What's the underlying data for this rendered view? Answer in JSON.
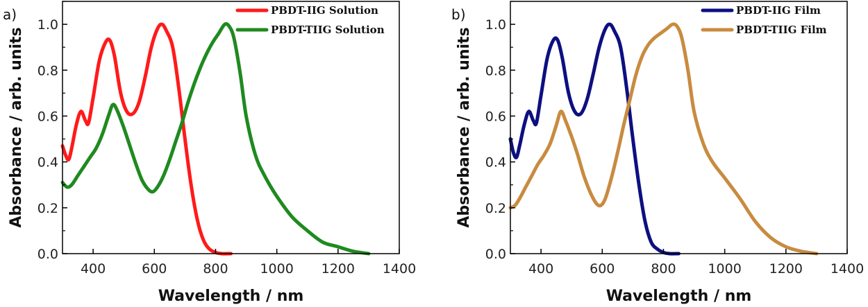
{
  "chart_data": [
    {
      "type": "line",
      "panel_label": "a)",
      "xlabel": "Wavelength / nm",
      "ylabel": "Absorbance / arb. units",
      "xlim": [
        300,
        1400
      ],
      "ylim": [
        0,
        1.1
      ],
      "xticks": [
        400,
        600,
        800,
        1000,
        1200,
        1400
      ],
      "yticks": [
        0.0,
        0.2,
        0.4,
        0.6,
        0.8,
        1.0
      ],
      "ytick_labels": [
        "0.0",
        "0.2",
        "0.4",
        "0.6",
        "0.8",
        "1.0"
      ],
      "legend_position": "top-right",
      "series": [
        {
          "name": "PBDT-IIG Solution",
          "color": "#ff1a1a",
          "x": [
            300,
            310,
            320,
            330,
            345,
            360,
            375,
            385,
            400,
            420,
            440,
            455,
            470,
            490,
            510,
            530,
            550,
            570,
            590,
            610,
            625,
            640,
            660,
            680,
            700,
            720,
            740,
            760,
            780,
            800,
            820,
            850
          ],
          "y": [
            0.47,
            0.43,
            0.41,
            0.46,
            0.56,
            0.62,
            0.58,
            0.57,
            0.68,
            0.84,
            0.92,
            0.93,
            0.86,
            0.7,
            0.62,
            0.61,
            0.66,
            0.77,
            0.9,
            0.98,
            1.0,
            0.97,
            0.9,
            0.72,
            0.5,
            0.3,
            0.15,
            0.06,
            0.02,
            0.005,
            0.0,
            0.0
          ]
        },
        {
          "name": "PBDT-TIIG Solution",
          "color": "#1f8a1f",
          "x": [
            300,
            315,
            330,
            350,
            370,
            390,
            410,
            430,
            450,
            465,
            480,
            500,
            520,
            540,
            560,
            580,
            595,
            610,
            630,
            650,
            670,
            690,
            710,
            730,
            750,
            770,
            790,
            810,
            830,
            845,
            860,
            880,
            900,
            930,
            960,
            1000,
            1050,
            1100,
            1150,
            1200,
            1250,
            1300
          ],
          "y": [
            0.31,
            0.29,
            0.3,
            0.34,
            0.38,
            0.42,
            0.46,
            0.52,
            0.6,
            0.65,
            0.62,
            0.55,
            0.47,
            0.39,
            0.32,
            0.28,
            0.27,
            0.29,
            0.34,
            0.41,
            0.49,
            0.57,
            0.66,
            0.74,
            0.81,
            0.87,
            0.92,
            0.96,
            1.0,
            0.99,
            0.94,
            0.79,
            0.6,
            0.43,
            0.34,
            0.25,
            0.16,
            0.1,
            0.05,
            0.03,
            0.01,
            0.0
          ]
        }
      ]
    },
    {
      "type": "line",
      "panel_label": "b)",
      "xlabel": "Wavelength / nm",
      "ylabel": "Absorbance / arb. units",
      "xlim": [
        300,
        1400
      ],
      "ylim": [
        0,
        1.1
      ],
      "xticks": [
        400,
        600,
        800,
        1000,
        1200,
        1400
      ],
      "yticks": [
        0.0,
        0.2,
        0.4,
        0.6,
        0.8,
        1.0
      ],
      "ytick_labels": [
        "0.0",
        "0.2",
        "0.4",
        "0.6",
        "0.8",
        "1.0"
      ],
      "legend_position": "top-right",
      "series": [
        {
          "name": "PBDT-IIG Film",
          "color": "#0d1080",
          "x": [
            300,
            310,
            320,
            330,
            345,
            360,
            375,
            385,
            400,
            420,
            440,
            455,
            470,
            490,
            510,
            530,
            550,
            570,
            590,
            610,
            625,
            640,
            660,
            680,
            700,
            720,
            740,
            760,
            780,
            800,
            820,
            850
          ],
          "y": [
            0.5,
            0.44,
            0.42,
            0.47,
            0.56,
            0.62,
            0.58,
            0.57,
            0.69,
            0.85,
            0.93,
            0.93,
            0.85,
            0.7,
            0.62,
            0.61,
            0.67,
            0.78,
            0.9,
            0.98,
            1.0,
            0.97,
            0.9,
            0.72,
            0.5,
            0.3,
            0.14,
            0.05,
            0.02,
            0.005,
            0.0,
            0.0
          ]
        },
        {
          "name": "PBDT-TIIG Film",
          "color": "#c88b40",
          "x": [
            300,
            315,
            330,
            350,
            370,
            390,
            410,
            430,
            450,
            465,
            480,
            500,
            520,
            540,
            560,
            580,
            595,
            610,
            630,
            650,
            670,
            690,
            710,
            730,
            750,
            770,
            790,
            810,
            830,
            845,
            860,
            880,
            900,
            930,
            960,
            1000,
            1050,
            1100,
            1150,
            1200,
            1250,
            1300
          ],
          "y": [
            0.2,
            0.21,
            0.24,
            0.29,
            0.34,
            0.39,
            0.43,
            0.48,
            0.56,
            0.62,
            0.58,
            0.51,
            0.43,
            0.34,
            0.27,
            0.22,
            0.21,
            0.24,
            0.33,
            0.44,
            0.56,
            0.67,
            0.78,
            0.86,
            0.91,
            0.94,
            0.96,
            0.98,
            1.0,
            0.99,
            0.94,
            0.8,
            0.62,
            0.48,
            0.4,
            0.33,
            0.24,
            0.14,
            0.07,
            0.03,
            0.01,
            0.0
          ]
        }
      ]
    }
  ]
}
